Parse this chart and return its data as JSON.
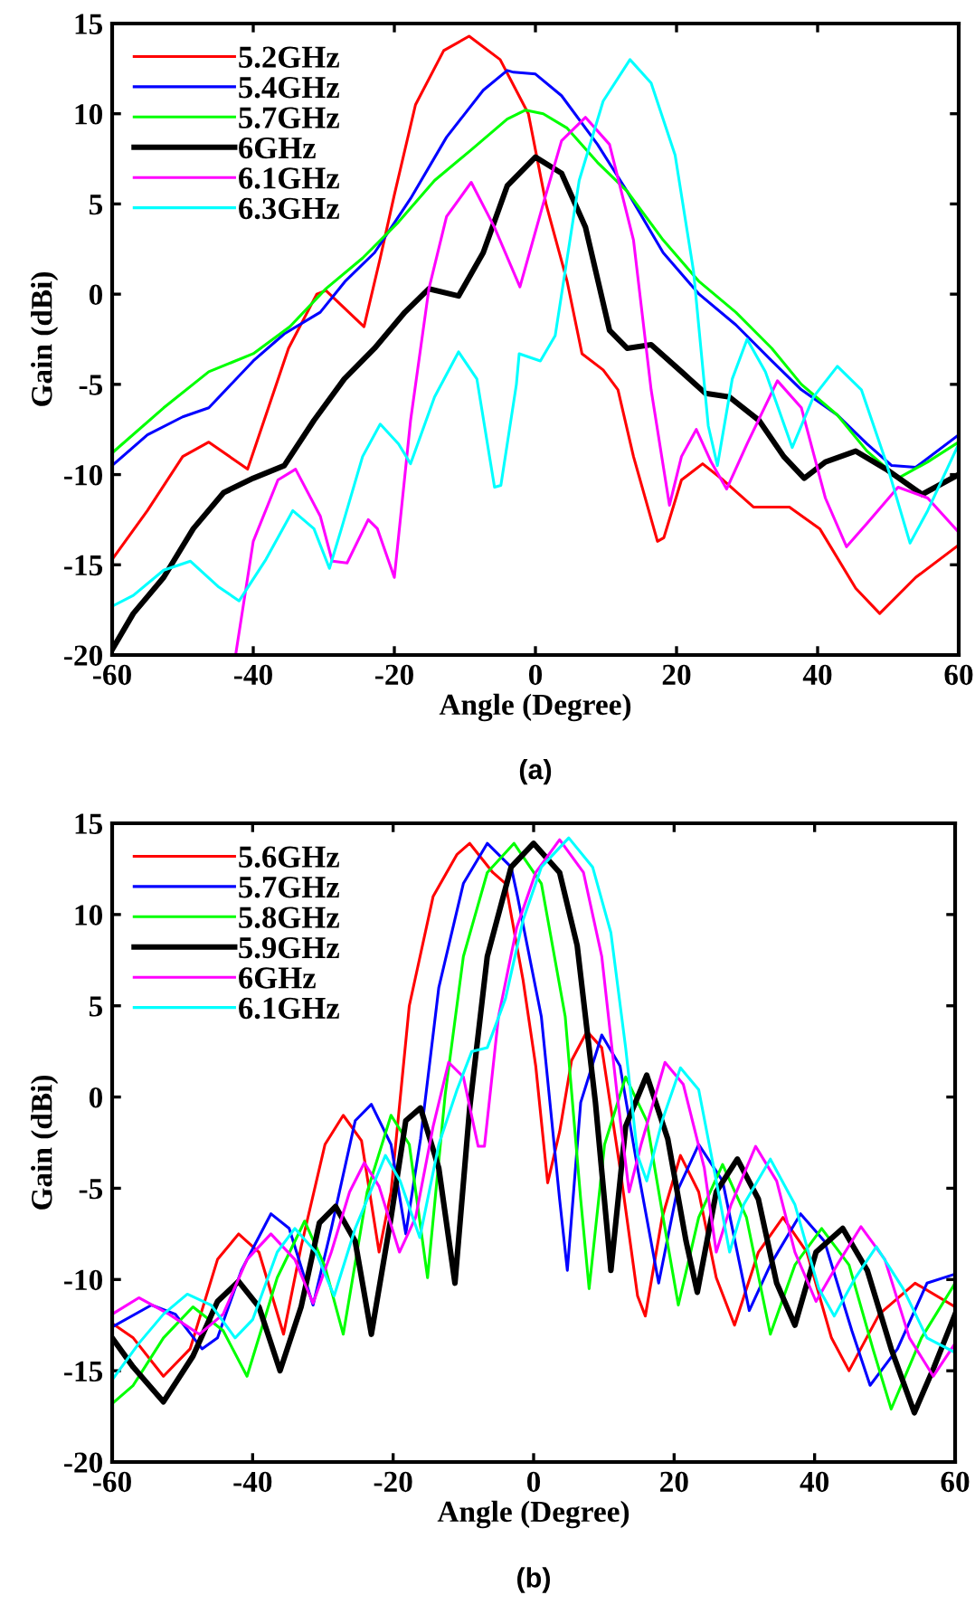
{
  "chart_data": [
    {
      "type": "line",
      "xlabel": "Angle (Degree)",
      "ylabel": "Gain (dBi)",
      "annotations": [
        "(a)"
      ],
      "xlim": [
        -60,
        60
      ],
      "ylim": [
        -20,
        15
      ],
      "xticks": [
        -60,
        -40,
        -20,
        0,
        20,
        40,
        60
      ],
      "yticks": [
        -20,
        -15,
        -10,
        -5,
        0,
        5,
        10,
        15
      ],
      "grid": false,
      "legend": "top left",
      "marker": "none",
      "line_style": "solid",
      "series": [
        {
          "name": "5.2GHz",
          "color": "#ff0000",
          "x": [
            -60,
            -55,
            -50,
            -46.3,
            -40.8,
            -35,
            -31,
            -29.7,
            -24.3,
            -22,
            -20,
            -17,
            -13,
            -9.4,
            -5,
            -1,
            1.5,
            4.5,
            6.6,
            9.6,
            11.7,
            13.9,
            17.3,
            18.2,
            20.7,
            23.7,
            26.6,
            30.9,
            36,
            40.3,
            45.4,
            48.8,
            53.9,
            60
          ],
          "values": [
            -14.7,
            -12,
            -9,
            -8.2,
            -9.7,
            -3,
            0,
            0.2,
            -1.8,
            2,
            5.5,
            10.5,
            13.5,
            14.3,
            13,
            10,
            5,
            0.7,
            -3.3,
            -4.2,
            -5.3,
            -9,
            -13.7,
            -13.5,
            -10.3,
            -9.4,
            -10.3,
            -11.8,
            -11.8,
            -13,
            -16.3,
            -17.7,
            -15.7,
            -13.9
          ]
        },
        {
          "name": "5.4GHz",
          "color": "#0000ff",
          "x": [
            -60,
            -55,
            -50,
            -46.3,
            -40,
            -35.6,
            -30.5,
            -27,
            -22.8,
            -17.7,
            -12.6,
            -7.4,
            -4,
            -3.1,
            0,
            3.7,
            8.8,
            13,
            18.1,
            23.2,
            28.4,
            33.5,
            37.7,
            42.8,
            47,
            50.5,
            53.9,
            60
          ],
          "values": [
            -9.5,
            -7.8,
            -6.8,
            -6.3,
            -3.7,
            -2.2,
            -1,
            0.7,
            2.3,
            5.3,
            8.7,
            11.3,
            12.4,
            12.3,
            12.2,
            11,
            8.3,
            5.7,
            2.3,
            0,
            -1.7,
            -3.7,
            -5.3,
            -6.7,
            -8.3,
            -9.5,
            -9.6,
            -7.8
          ]
        },
        {
          "name": "5.7GHz",
          "color": "#00ff00",
          "x": [
            -60,
            -52.7,
            -46.3,
            -40,
            -34.8,
            -29.7,
            -24.5,
            -19.4,
            -14.3,
            -9.1,
            -4,
            -1.4,
            1.1,
            4.5,
            8.8,
            13,
            18.1,
            23.2,
            28.4,
            33.5,
            37.7,
            42.8,
            47,
            51.4,
            55.6,
            60
          ],
          "values": [
            -8.8,
            -6.3,
            -4.3,
            -3.3,
            -1.8,
            0.3,
            2,
            4,
            6.3,
            8,
            9.7,
            10.2,
            10,
            9.2,
            7.3,
            5.7,
            3,
            0.7,
            -1,
            -3,
            -5,
            -6.7,
            -8.7,
            -10.2,
            -9.3,
            -8.2
          ]
        },
        {
          "name": "6GHz",
          "color": "#000000",
          "x": [
            -60,
            -57,
            -52.7,
            -48.5,
            -44.2,
            -40,
            -35.6,
            -31.4,
            -27.1,
            -22.8,
            -18.5,
            -15.1,
            -10.9,
            -7.4,
            -4,
            0,
            3.7,
            7.1,
            10.5,
            13,
            16.4,
            20.7,
            24.1,
            27.5,
            31.7,
            35.2,
            38.1,
            41.1,
            45.4,
            49.7,
            54.8,
            60
          ],
          "values": [
            -19.7,
            -17.7,
            -15.7,
            -13,
            -11,
            -10.2,
            -9.5,
            -7,
            -4.7,
            -3,
            -1,
            0.3,
            -0.1,
            2.3,
            6,
            7.6,
            6.7,
            3.7,
            -2,
            -3,
            -2.8,
            -4.3,
            -5.5,
            -5.7,
            -7,
            -9,
            -10.2,
            -9.3,
            -8.7,
            -9.7,
            -11.1,
            -10
          ]
        },
        {
          "name": "6.1GHz",
          "color": "#ff00ff",
          "x": [
            -42.5,
            -40,
            -36.5,
            -34,
            -30.5,
            -28.8,
            -26.7,
            -23.7,
            -22.4,
            -20,
            -17.7,
            -15.1,
            -12.6,
            -9.1,
            -5.8,
            -2.2,
            1.1,
            3.7,
            7.1,
            10.5,
            13.9,
            16.4,
            19,
            20.7,
            22.8,
            24.9,
            27.1,
            30,
            34.3,
            37.7,
            41.1,
            44.1,
            47,
            51.4,
            55.6,
            60
          ],
          "values": [
            -20,
            -13.7,
            -10.3,
            -9.7,
            -12.3,
            -14.8,
            -14.9,
            -12.5,
            -13,
            -15.7,
            -7,
            0.3,
            4.3,
            6.2,
            3.7,
            0.4,
            5,
            8.5,
            9.8,
            8.3,
            3,
            -5.3,
            -11.7,
            -9,
            -7.5,
            -9.3,
            -10.8,
            -8.3,
            -4.8,
            -6.3,
            -11.3,
            -14,
            -12.7,
            -10.7,
            -11.3,
            -13.2
          ]
        },
        {
          "name": "6.3GHz",
          "color": "#00ffff",
          "x": [
            -60,
            -57,
            -52.7,
            -48.9,
            -45,
            -42,
            -38.2,
            -34.4,
            -31.4,
            -29.2,
            -27.5,
            -24.5,
            -22,
            -19.4,
            -17.7,
            -14.3,
            -10.9,
            -8.3,
            -5.8,
            -4.9,
            -2.7,
            -2.3,
            0.7,
            2.8,
            6.2,
            9.6,
            13.4,
            16.4,
            19.8,
            22.4,
            24.5,
            25.8,
            27.9,
            30,
            32.6,
            36.4,
            39.4,
            42.8,
            46.2,
            49.7,
            53.1,
            55.6,
            60
          ],
          "values": [
            -17.3,
            -16.7,
            -15.3,
            -14.8,
            -16.2,
            -17,
            -14.7,
            -12,
            -13,
            -15.2,
            -13,
            -9,
            -7.2,
            -8.3,
            -9.4,
            -5.7,
            -3.2,
            -4.7,
            -10.7,
            -10.6,
            -5,
            -3.3,
            -3.7,
            -2.3,
            6.3,
            10.7,
            13,
            11.7,
            7.7,
            1.3,
            -7.3,
            -9.5,
            -4.7,
            -2.5,
            -4.3,
            -8.5,
            -5.7,
            -4,
            -5.3,
            -9.3,
            -13.8,
            -12,
            -8.3
          ]
        }
      ]
    },
    {
      "type": "line",
      "xlabel": "Angle (Degree)",
      "ylabel": "Gain (dBi)",
      "annotations": [
        "(b)"
      ],
      "xlim": [
        -60,
        60
      ],
      "ylim": [
        -20,
        15
      ],
      "xticks": [
        -60,
        -40,
        -20,
        0,
        20,
        40,
        60
      ],
      "yticks": [
        -20,
        -15,
        -10,
        -5,
        0,
        5,
        10,
        15
      ],
      "grid": false,
      "legend": "top left",
      "marker": "none",
      "line_style": "solid",
      "series": [
        {
          "name": "5.6GHz",
          "color": "#ff0000",
          "x": [
            -60,
            -57,
            -52.7,
            -48.9,
            -45,
            -42,
            -39.1,
            -35.6,
            -33.1,
            -29.7,
            -27.1,
            -24.5,
            -22,
            -20.3,
            -17.7,
            -14.3,
            -10.9,
            -9.1,
            -5.8,
            -4,
            -1.5,
            0.3,
            2,
            3.7,
            5.4,
            7.6,
            9.7,
            12.3,
            14.8,
            15.9,
            18.3,
            20.9,
            23.5,
            26,
            28.6,
            32,
            35.5,
            38.9,
            42.4,
            44.9,
            49.2,
            54.3,
            60
          ],
          "values": [
            -12.4,
            -13.2,
            -15.3,
            -13.8,
            -8.9,
            -7.5,
            -8.5,
            -13,
            -8.2,
            -2.6,
            -1,
            -2.4,
            -8.5,
            -5.2,
            5,
            11,
            13.3,
            13.9,
            12.3,
            11.7,
            6.4,
            1.7,
            -4.7,
            -1.9,
            2,
            3.6,
            2.7,
            -3.9,
            -10.9,
            -12,
            -6.6,
            -3.2,
            -5.2,
            -9.9,
            -12.5,
            -8.5,
            -6.6,
            -8.5,
            -13.2,
            -15,
            -11.9,
            -10.2,
            -11.5
          ]
        },
        {
          "name": "5.7GHz",
          "color": "#0000ff",
          "x": [
            -60,
            -54.4,
            -51,
            -47.2,
            -45,
            -41.6,
            -37.4,
            -34.8,
            -31.4,
            -28.8,
            -25.4,
            -23.1,
            -20.3,
            -18.2,
            -16.1,
            -13.5,
            -10,
            -6.6,
            -3.2,
            -2.3,
            1.1,
            3.7,
            4.8,
            6.7,
            9.7,
            12.3,
            14.8,
            17.8,
            20.4,
            23.5,
            26.9,
            30.7,
            33.7,
            38,
            41.4,
            45.3,
            47.9,
            51.8,
            56,
            60
          ],
          "values": [
            -12.6,
            -11.4,
            -11.9,
            -13.8,
            -13.2,
            -9.5,
            -6.4,
            -7.2,
            -11.4,
            -7.2,
            -1.3,
            -0.4,
            -2.6,
            -7.5,
            -2.3,
            6,
            11.7,
            13.9,
            12.6,
            11,
            4.4,
            -5.6,
            -9.5,
            -0.3,
            3.4,
            1.7,
            -3.9,
            -10.2,
            -5.2,
            -2.6,
            -4.6,
            -11.7,
            -9.2,
            -6.4,
            -7.9,
            -12.8,
            -15.8,
            -13.8,
            -10.2,
            -9.7
          ]
        },
        {
          "name": "5.8GHz",
          "color": "#00ff00",
          "x": [
            -60,
            -57,
            -52.7,
            -48.5,
            -44.2,
            -40.8,
            -36.5,
            -32.6,
            -29.7,
            -27.1,
            -23.7,
            -20.3,
            -17.7,
            -15.1,
            -12.6,
            -10,
            -6.6,
            -2.8,
            1.1,
            4.5,
            6.7,
            7.9,
            10.1,
            13.1,
            16.1,
            18.7,
            20.6,
            23.5,
            26.9,
            30.3,
            33.7,
            37.2,
            41,
            44.9,
            48.3,
            50.9,
            55.2,
            60
          ],
          "values": [
            -16.8,
            -15.8,
            -13.2,
            -11.5,
            -12.8,
            -15.3,
            -9.9,
            -6.8,
            -9.3,
            -13,
            -5.2,
            -1,
            -2.6,
            -9.9,
            0.1,
            7.7,
            12.3,
            13.9,
            11.7,
            4.4,
            -5.6,
            -10.5,
            -2.6,
            1.1,
            -1.3,
            -7.2,
            -11.4,
            -6.6,
            -3.7,
            -6.6,
            -13,
            -9.2,
            -7.2,
            -9.2,
            -13.8,
            -17.1,
            -13.2,
            -10.2
          ]
        },
        {
          "name": "5.9GHz",
          "color": "#000000",
          "x": [
            -60,
            -57,
            -52.7,
            -48.5,
            -45,
            -42,
            -39.1,
            -36.1,
            -33.1,
            -30.5,
            -28.2,
            -25.4,
            -23.1,
            -20.3,
            -18.2,
            -16.1,
            -13.5,
            -11.2,
            -9.1,
            -6.6,
            -3.2,
            0,
            3.7,
            6.2,
            8.8,
            11,
            13.1,
            16.1,
            19.1,
            21.7,
            23.3,
            26,
            29,
            32,
            34.6,
            37.2,
            40.2,
            44,
            47.5,
            50.9,
            54.2,
            57,
            60
          ],
          "values": [
            -13.2,
            -14.8,
            -16.7,
            -14.2,
            -11.2,
            -10.1,
            -11.5,
            -15,
            -11.5,
            -6.9,
            -6,
            -7.9,
            -13,
            -6.6,
            -1.3,
            -0.6,
            -3.9,
            -10.2,
            -0.6,
            7.7,
            12.6,
            13.9,
            12.3,
            8.3,
            -0.3,
            -9.5,
            -1.6,
            1.2,
            -2.3,
            -7.9,
            -10.7,
            -5.2,
            -3.4,
            -5.6,
            -10.2,
            -12.5,
            -8.5,
            -7.2,
            -9.5,
            -13.8,
            -17.3,
            -14.8,
            -11.9
          ]
        },
        {
          "name": "6GHz",
          "color": "#ff00ff",
          "x": [
            -60,
            -56.2,
            -51.9,
            -47.6,
            -44.2,
            -40.8,
            -37.4,
            -34,
            -31.4,
            -28.8,
            -26.2,
            -24.1,
            -22,
            -19.1,
            -16.8,
            -14.3,
            -12.1,
            -10,
            -7.9,
            -7,
            -5,
            -2.4,
            0.3,
            3.7,
            7.1,
            9.7,
            11.9,
            13.6,
            15.3,
            18.7,
            21.3,
            24.3,
            26,
            28.1,
            31.6,
            34.6,
            37.2,
            40.2,
            43.2,
            46.6,
            50,
            53.5,
            56.9,
            60
          ],
          "values": [
            -11.9,
            -11,
            -11.9,
            -13,
            -11.9,
            -8.9,
            -7.5,
            -8.9,
            -11.3,
            -8.5,
            -5.2,
            -3.6,
            -4.9,
            -8.5,
            -6.6,
            -1.6,
            1.9,
            1.1,
            -2.7,
            -2.7,
            4.4,
            9.3,
            12.3,
            14.1,
            12.3,
            7.7,
            0.1,
            -5.2,
            -2.6,
            1.9,
            0.7,
            -3.9,
            -8.5,
            -5.9,
            -2.7,
            -4.6,
            -8.5,
            -11.2,
            -9.2,
            -7.1,
            -8.9,
            -13.2,
            -15.3,
            -13.5
          ]
        },
        {
          "name": "6.1GHz",
          "color": "#00ffff",
          "x": [
            -60,
            -56.2,
            -52.7,
            -49.3,
            -45.9,
            -42.5,
            -40,
            -36.5,
            -34,
            -31,
            -28.4,
            -25.4,
            -21.1,
            -19,
            -16.2,
            -13.5,
            -10.9,
            -8.8,
            -6.6,
            -4,
            -1.5,
            1.1,
            5,
            8.4,
            11,
            13.1,
            14.8,
            16.1,
            18.3,
            20.9,
            23.5,
            26,
            27.9,
            29.9,
            33.7,
            37.2,
            40.6,
            42.8,
            45.8,
            48.8,
            52.6,
            56,
            60
          ],
          "values": [
            -15.5,
            -13.5,
            -11.9,
            -10.8,
            -11.4,
            -13.2,
            -12.2,
            -8.5,
            -7.2,
            -8.5,
            -10.9,
            -7.2,
            -3.2,
            -4.6,
            -7.7,
            -2.6,
            0.4,
            2.5,
            2.7,
            5.4,
            9.7,
            12.6,
            14.2,
            12.6,
            9,
            2.7,
            -3.2,
            -4.6,
            -1.3,
            1.6,
            0.4,
            -4.6,
            -8.5,
            -5.9,
            -3.4,
            -5.9,
            -10.5,
            -12,
            -9.9,
            -8.2,
            -10.5,
            -13.2,
            -14
          ]
        }
      ]
    }
  ]
}
